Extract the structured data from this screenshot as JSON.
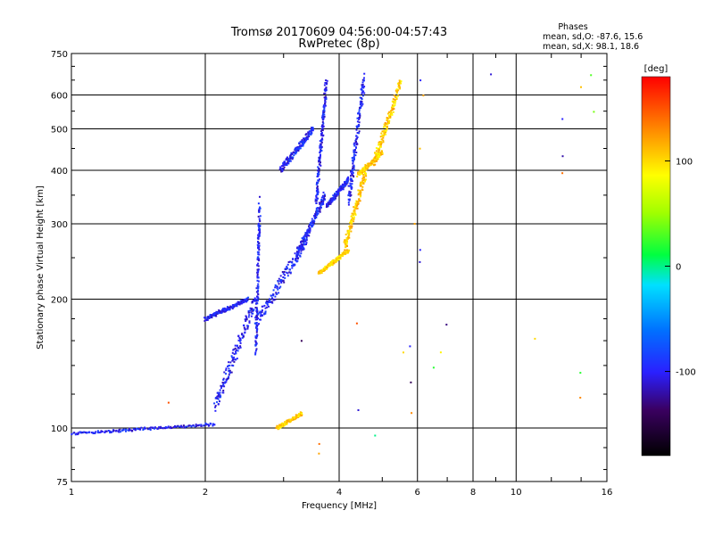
{
  "chart_data": {
    "type": "scatter",
    "title": "Tromsø 20170609 04:56:00-04:57:43",
    "subtitle": "RwPretec (8p)",
    "xlabel": "Frequency [MHz]",
    "ylabel": "Stationary phase Virtual Height [km]",
    "x_scale": "log",
    "y_scale": "log",
    "xlim": [
      1,
      16
    ],
    "ylim": [
      75,
      750
    ],
    "x_ticks": [
      1,
      2,
      4,
      6,
      8,
      10,
      16
    ],
    "x_tick_labels": [
      "1",
      "2",
      "4",
      "6",
      "8",
      "10",
      "16"
    ],
    "y_ticks": [
      75,
      100,
      200,
      300,
      400,
      500,
      600,
      750
    ],
    "y_tick_labels": [
      "75",
      "100",
      "200",
      "300",
      "400",
      "500",
      "600",
      "750"
    ],
    "grid": true,
    "phases_legend": {
      "title": "Phases",
      "line_o": "mean, sd,O: -87.6, 15.6",
      "line_x": "mean, sd,X:  98.1, 18.6"
    },
    "colorbar": {
      "label": "[deg]",
      "range": [
        -180,
        180
      ],
      "ticks": [
        100,
        0,
        -100
      ],
      "tick_labels": [
        "100",
        "0",
        "-100"
      ]
    },
    "series": [
      {
        "name": "O-mode traces (blue, ~ -100 deg)",
        "segments": [
          {
            "f": [
              1.0,
              2.1
            ],
            "h": [
              97,
              102
            ]
          },
          {
            "f": [
              2.1,
              2.6
            ],
            "h": [
              112,
              200
            ]
          },
          {
            "f": [
              2.6,
              2.65
            ],
            "h": [
              150,
              330
            ]
          },
          {
            "f": [
              2.6,
              3.4
            ],
            "h": [
              175,
              280
            ]
          },
          {
            "f": [
              3.2,
              3.72
            ],
            "h": [
              250,
              350
            ]
          },
          {
            "f": [
              3.55,
              3.75
            ],
            "h": [
              340,
              650
            ]
          },
          {
            "f": [
              3.75,
              4.2
            ],
            "h": [
              330,
              380
            ]
          },
          {
            "f": [
              4.2,
              4.55
            ],
            "h": [
              340,
              650
            ]
          },
          {
            "f": [
              2.0,
              2.5
            ],
            "h": [
              180,
              200
            ]
          },
          {
            "f": [
              2.95,
              3.5
            ],
            "h": [
              400,
              500
            ]
          }
        ]
      },
      {
        "name": "X-mode traces (yellow/orange, ~ +100 deg)",
        "segments": [
          {
            "f": [
              3.6,
              4.2
            ],
            "h": [
              230,
              260
            ]
          },
          {
            "f": [
              4.1,
              4.6
            ],
            "h": [
              260,
              400
            ]
          },
          {
            "f": [
              4.4,
              5.0
            ],
            "h": [
              390,
              440
            ]
          },
          {
            "f": [
              4.8,
              5.5
            ],
            "h": [
              420,
              640
            ]
          },
          {
            "f": [
              2.9,
              3.3
            ],
            "h": [
              100,
              108
            ]
          }
        ]
      },
      {
        "name": "scattered echoes",
        "points": [
          {
            "f": 6.1,
            "h": 650,
            "phase": -100
          },
          {
            "f": 6.1,
            "h": 260,
            "phase": -100
          },
          {
            "f": 6.1,
            "h": 245,
            "phase": -110
          },
          {
            "f": 8.8,
            "h": 670,
            "phase": -110
          },
          {
            "f": 12.7,
            "h": 525,
            "phase": -100
          },
          {
            "f": 12.7,
            "h": 430,
            "phase": -120
          },
          {
            "f": 12.7,
            "h": 395,
            "phase": 140
          },
          {
            "f": 14.8,
            "h": 665,
            "phase": 30
          },
          {
            "f": 14.9,
            "h": 550,
            "phase": 40
          },
          {
            "f": 14.0,
            "h": 625,
            "phase": 110
          },
          {
            "f": 14.0,
            "h": 135,
            "phase": 20
          },
          {
            "f": 14.0,
            "h": 118,
            "phase": 130
          },
          {
            "f": 11.0,
            "h": 162,
            "phase": 100
          },
          {
            "f": 7.0,
            "h": 175,
            "phase": -130
          },
          {
            "f": 6.8,
            "h": 150,
            "phase": 90
          },
          {
            "f": 6.5,
            "h": 138,
            "phase": 20
          },
          {
            "f": 5.8,
            "h": 155,
            "phase": -100
          },
          {
            "f": 5.8,
            "h": 128,
            "phase": -140
          },
          {
            "f": 5.8,
            "h": 108,
            "phase": 130
          },
          {
            "f": 5.6,
            "h": 150,
            "phase": 100
          },
          {
            "f": 5.9,
            "h": 300,
            "phase": 120
          },
          {
            "f": 4.4,
            "h": 175,
            "phase": 150
          },
          {
            "f": 4.4,
            "h": 110,
            "phase": -110
          },
          {
            "f": 3.3,
            "h": 160,
            "phase": -140
          },
          {
            "f": 4.8,
            "h": 96,
            "phase": 0
          },
          {
            "f": 3.6,
            "h": 92,
            "phase": 140
          },
          {
            "f": 3.6,
            "h": 87,
            "phase": 120
          },
          {
            "f": 6.1,
            "h": 450,
            "phase": 110
          },
          {
            "f": 6.2,
            "h": 600,
            "phase": 120
          },
          {
            "f": 1.65,
            "h": 115,
            "phase": 150
          }
        ]
      }
    ]
  }
}
